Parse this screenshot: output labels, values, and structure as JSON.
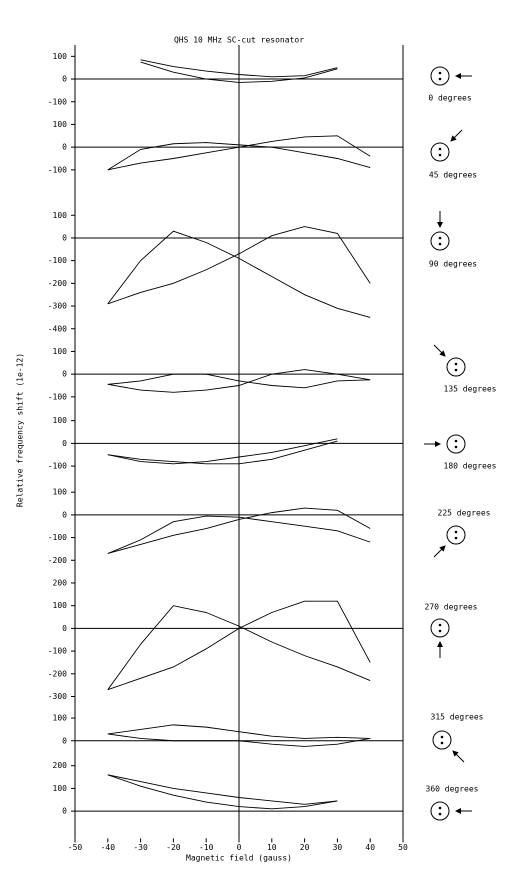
{
  "chart_data": {
    "type": "line",
    "title": "QHS 10 MHz SC-cut resonator",
    "x_label": "Magnetic field (gauss)",
    "y_label": "Relative frequency shift (1e-12)",
    "xlim": [
      -50,
      50
    ],
    "xticks": [
      -50,
      -40,
      -30,
      -20,
      -10,
      0,
      10,
      20,
      30,
      40,
      50
    ],
    "x": [
      -40,
      -30,
      -20,
      -10,
      0,
      10,
      20,
      30,
      40
    ],
    "color": "#000000",
    "panels": [
      {
        "label": "0 degrees",
        "ylim": [
          -150,
          150
        ],
        "yticks": [
          100,
          0,
          -100
        ],
        "series": [
          {
            "values": [
              null,
              85,
              55,
              35,
              20,
              10,
              15,
              50,
              null
            ]
          },
          {
            "values": [
              null,
              75,
              30,
              0,
              -15,
              -10,
              5,
              45,
              null
            ]
          }
        ]
      },
      {
        "label": "45 degrees",
        "ylim": [
          -140,
          150
        ],
        "yticks": [
          100,
          0,
          -100
        ],
        "series": [
          {
            "values": [
              -100,
              -70,
              -50,
              -25,
              0,
              25,
              45,
              50,
              -40
            ]
          },
          {
            "values": [
              -100,
              -10,
              15,
              20,
              10,
              0,
              -25,
              -50,
              -90
            ]
          }
        ]
      },
      {
        "label": "90 degrees",
        "ylim": [
          -420,
          260
        ],
        "yticks": [
          100,
          0,
          -100,
          -200,
          -300,
          -400
        ],
        "series": [
          {
            "values": [
              -290,
              -100,
              30,
              -20,
              -90,
              -170,
              -250,
              -310,
              -350
            ]
          },
          {
            "values": [
              -290,
              -240,
              -200,
              -140,
              -70,
              10,
              50,
              20,
              -200
            ]
          }
        ]
      },
      {
        "label": "135 degrees",
        "ylim": [
          -130,
          180
        ],
        "yticks": [
          100,
          0,
          -100
        ],
        "series": [
          {
            "values": [
              -45,
              -30,
              0,
              0,
              -30,
              -50,
              -60,
              -30,
              -25
            ]
          },
          {
            "values": [
              -45,
              -70,
              -80,
              -70,
              -50,
              0,
              20,
              0,
              -25
            ]
          }
        ]
      },
      {
        "label": "180 degrees",
        "ylim": [
          -150,
          175
        ],
        "yticks": [
          100,
          0,
          -100
        ],
        "series": [
          {
            "values": [
              -50,
              -80,
              -90,
              -80,
              -60,
              -40,
              -10,
              20,
              null
            ]
          },
          {
            "values": [
              -50,
              -70,
              -80,
              -90,
              -90,
              -70,
              -30,
              10,
              null
            ]
          }
        ]
      },
      {
        "label": "225 degrees",
        "ylim": [
          -210,
          165
        ],
        "yticks": [
          100,
          0,
          -100,
          -200
        ],
        "series": [
          {
            "values": [
              -170,
              -110,
              -30,
              -5,
              -10,
              -30,
              -50,
              -70,
              -120
            ]
          },
          {
            "values": [
              -170,
              -130,
              -90,
              -60,
              -20,
              10,
              30,
              20,
              -60
            ]
          }
        ]
      },
      {
        "label": "270 degrees",
        "ylim": [
          -320,
          290
        ],
        "yticks": [
          200,
          100,
          0,
          -100,
          -200,
          -300
        ],
        "series": [
          {
            "values": [
              -270,
              -70,
              100,
              70,
              10,
              -60,
              -120,
              -170,
              -230
            ]
          },
          {
            "values": [
              -270,
              -220,
              -170,
              -90,
              0,
              70,
              120,
              120,
              -150
            ]
          }
        ]
      },
      {
        "label": "315 degrees",
        "ylim": [
          -60,
          175
        ],
        "yticks": [
          100,
          0
        ],
        "series": [
          {
            "values": [
              30,
              50,
              70,
              60,
              40,
              20,
              10,
              15,
              10
            ]
          },
          {
            "values": [
              30,
              10,
              0,
              0,
              0,
              -15,
              -25,
              -15,
              10
            ]
          }
        ]
      },
      {
        "label": "360 degrees",
        "ylim": [
          -120,
          250
        ],
        "yticks": [
          200,
          100,
          0
        ],
        "series": [
          {
            "values": [
              160,
              130,
              100,
              80,
              60,
              45,
              30,
              45,
              null
            ]
          },
          {
            "values": [
              160,
              110,
              70,
              40,
              20,
              10,
              20,
              45,
              null
            ]
          }
        ]
      }
    ]
  }
}
